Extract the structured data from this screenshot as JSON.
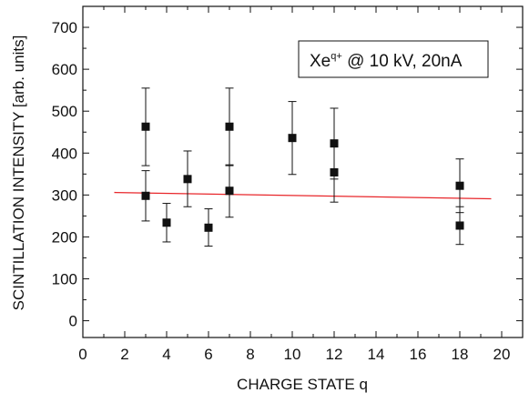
{
  "chart_data": {
    "type": "scatter",
    "xlabel": "CHARGE STATE q",
    "ylabel": "SCINTILLATION INTENSITY [arb. units]",
    "xlim": [
      0,
      21
    ],
    "ylim": [
      -40,
      750
    ],
    "x_ticks": [
      0,
      2,
      4,
      6,
      8,
      10,
      12,
      14,
      16,
      18,
      20
    ],
    "y_ticks": [
      0,
      100,
      200,
      300,
      400,
      500,
      600,
      700
    ],
    "grid": false,
    "legend": {
      "placement": "top-right",
      "base": "Xe",
      "superscript": "q+",
      "rest": " @ 10 kV, 20nA"
    },
    "series": [
      {
        "points": [
          {
            "x": 3,
            "y": 463,
            "err_low": 370,
            "err_high": 555
          },
          {
            "x": 3,
            "y": 298,
            "err_low": 238,
            "err_high": 358
          },
          {
            "x": 4,
            "y": 234,
            "err_low": 188,
            "err_high": 280
          },
          {
            "x": 5,
            "y": 338,
            "err_low": 272,
            "err_high": 405
          },
          {
            "x": 6,
            "y": 222,
            "err_low": 178,
            "err_high": 267
          },
          {
            "x": 7,
            "y": 463,
            "err_low": 370,
            "err_high": 555
          },
          {
            "x": 7,
            "y": 310,
            "err_low": 247,
            "err_high": 372
          },
          {
            "x": 10,
            "y": 436,
            "err_low": 349,
            "err_high": 523
          },
          {
            "x": 12,
            "y": 423,
            "err_low": 338,
            "err_high": 507
          },
          {
            "x": 12,
            "y": 354,
            "err_low": 283,
            "err_high": 425
          },
          {
            "x": 18,
            "y": 322,
            "err_low": 258,
            "err_high": 386
          },
          {
            "x": 18,
            "y": 227,
            "err_low": 182,
            "err_high": 272
          }
        ]
      }
    ],
    "fit_line": {
      "x": [
        1.5,
        19.5
      ],
      "y": [
        306,
        291
      ],
      "color": "#e8262a"
    },
    "colors": {
      "marker": "#111111",
      "axis": "#111111"
    }
  }
}
